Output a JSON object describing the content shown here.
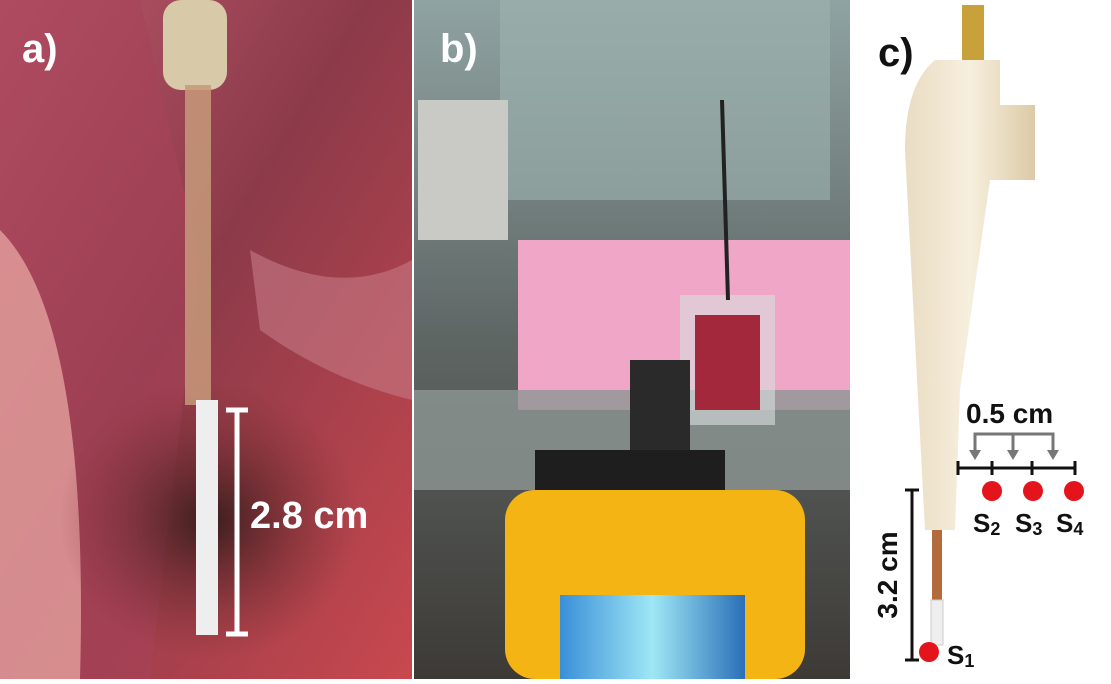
{
  "panels": {
    "a": {
      "label": "a)",
      "measure": "2.8 cm"
    },
    "b": {
      "label": "b)"
    },
    "c": {
      "label": "c)",
      "spacing": "0.5 cm",
      "length": "3.2 cm",
      "sensors": [
        {
          "main": "S",
          "sub": "1"
        },
        {
          "main": "S",
          "sub": "2"
        },
        {
          "main": "S",
          "sub": "3"
        },
        {
          "main": "S",
          "sub": "4"
        }
      ]
    }
  }
}
